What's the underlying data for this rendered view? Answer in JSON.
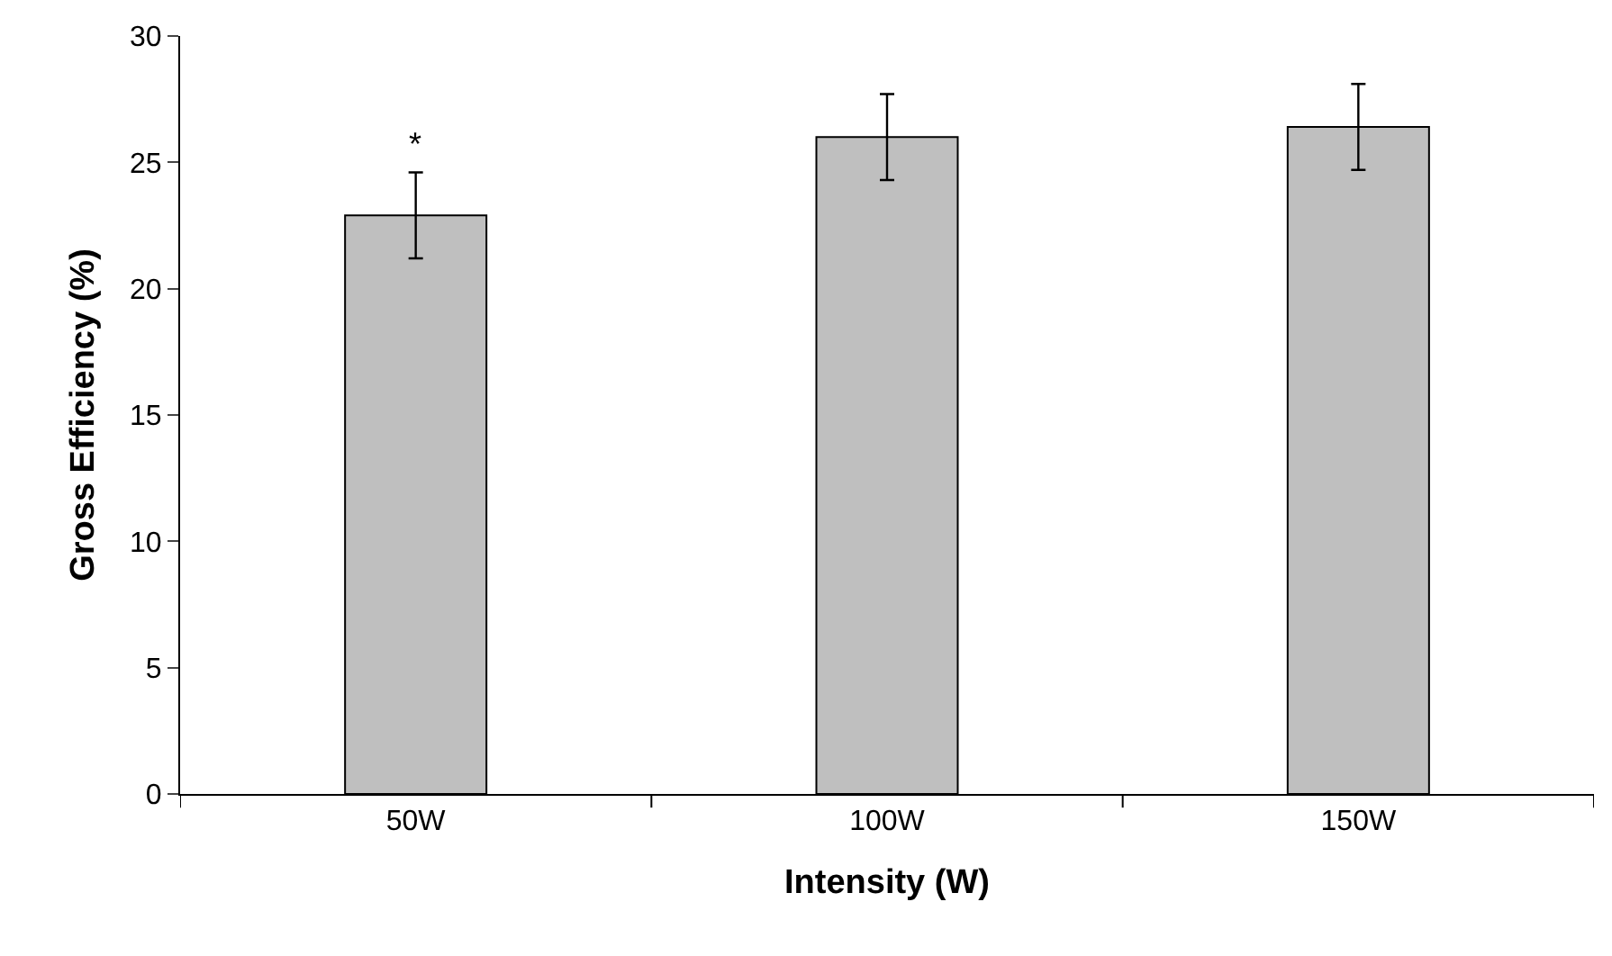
{
  "chart_data": {
    "type": "bar",
    "xlabel": "Intensity (W)",
    "ylabel": "Gross Efficiency (%)",
    "categories": [
      "50W",
      "100W",
      "150W"
    ],
    "series": [
      {
        "color": "#bfbfbf",
        "values": [
          22.9,
          26.0,
          26.4
        ],
        "errors": [
          1.7,
          1.7,
          1.7
        ]
      }
    ],
    "ylim": [
      0,
      30
    ],
    "yticks": [
      0,
      5,
      10,
      15,
      20,
      25,
      30
    ],
    "grid": false,
    "legend": false,
    "annotations": [
      {
        "text": "*",
        "x": "50W",
        "y": 24.9
      }
    ]
  }
}
